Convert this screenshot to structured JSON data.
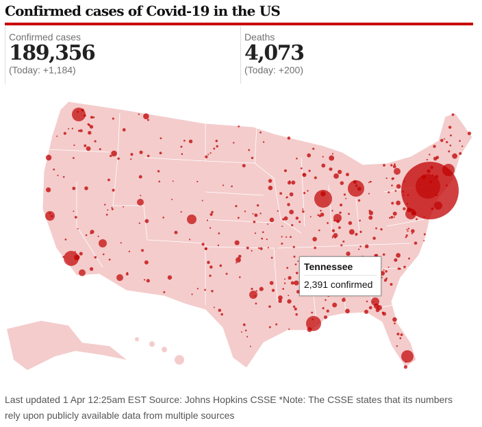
{
  "title": "Confirmed cases of Covid-19 in the US",
  "stats": [
    {
      "label": "Confirmed cases",
      "value": "189,356",
      "today": "(Today: +1,184)"
    },
    {
      "label": "Deaths",
      "value": "4,073",
      "today": "(Today: +200)"
    }
  ],
  "chart_data": {
    "type": "scatter",
    "title": "Confirmed cases of Covid-19 in the US",
    "description_level": "county bubbles",
    "tooltip": {
      "state": "Tennessee",
      "text": "2,391 confirmed",
      "value": 2391
    }
  },
  "colors": {
    "accent": "#c70000",
    "land": "#f4cccc",
    "bubble": "#c00000"
  },
  "footer": "Last updated 1 Apr 12:25am EST Source: Johns Hopkins CSSE *Note: The CSSE states that its numbers rely upon publicly available data from multiple sources"
}
